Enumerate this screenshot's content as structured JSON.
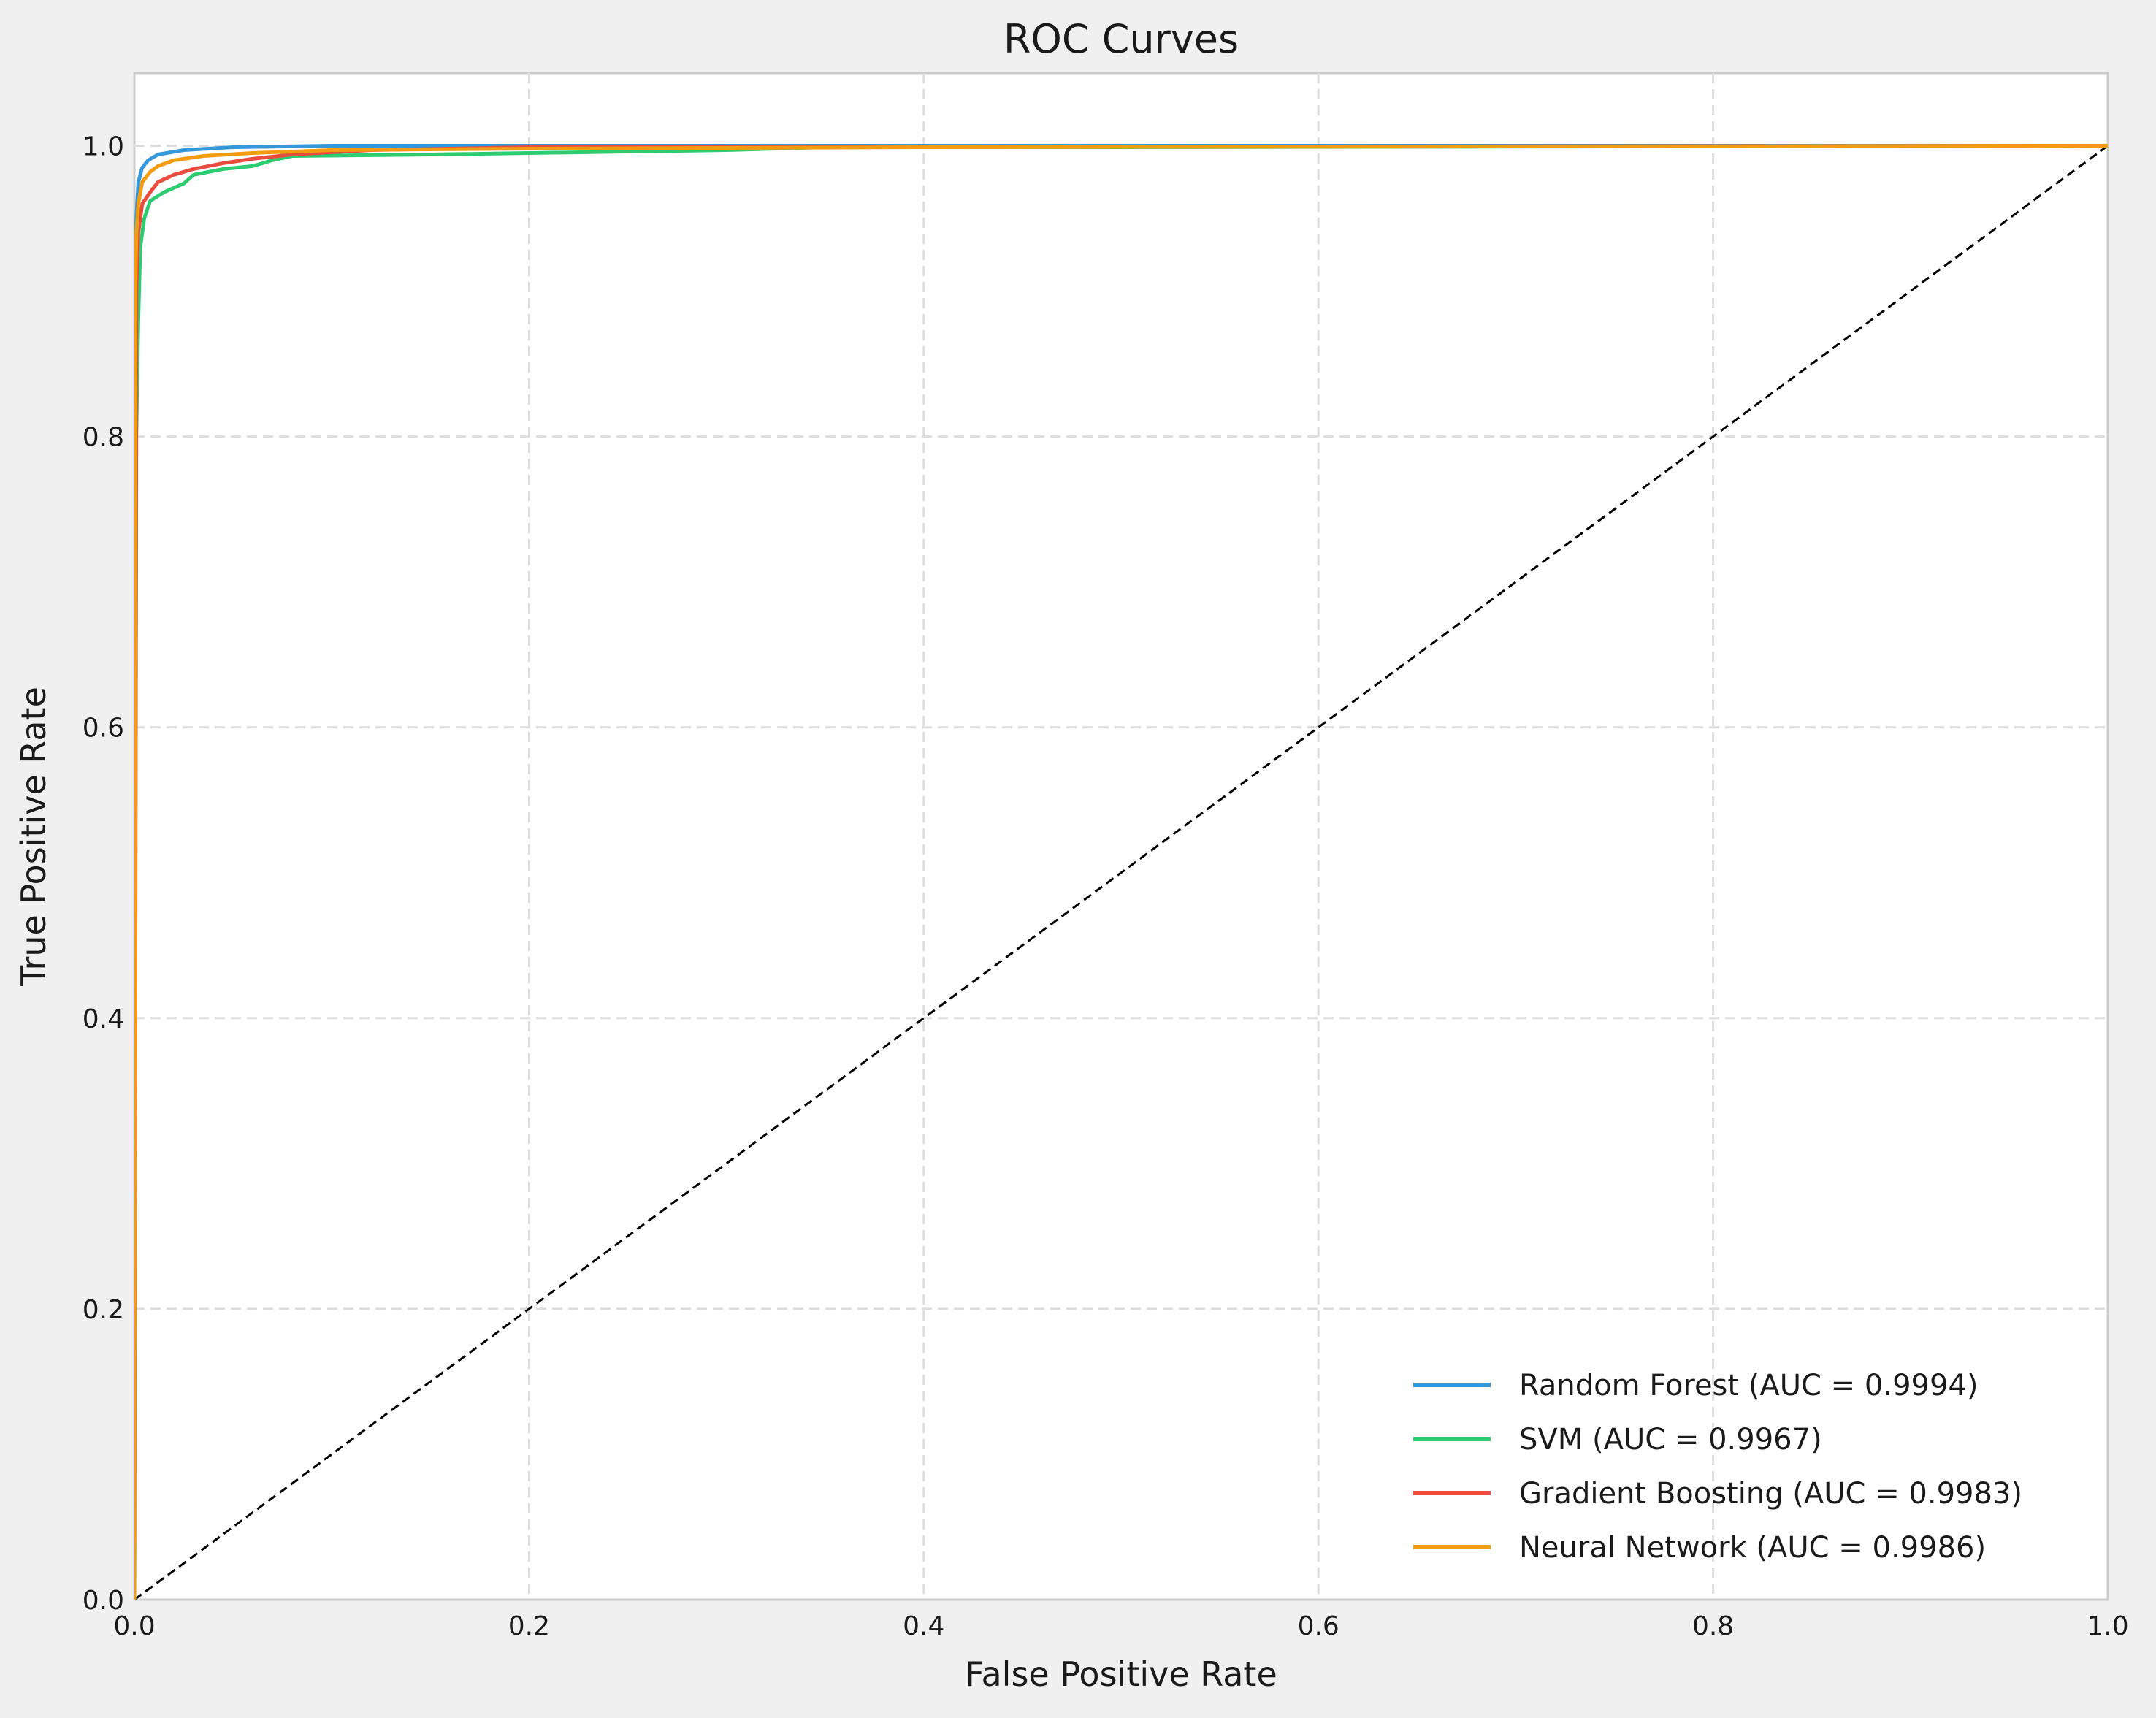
{
  "chart_data": {
    "type": "line",
    "title": "ROC Curves",
    "xlabel": "False Positive Rate",
    "ylabel": "True Positive Rate",
    "xlim": [
      0.0,
      1.0
    ],
    "ylim": [
      0.0,
      1.05
    ],
    "xticks": [
      "0.0",
      "0.2",
      "0.4",
      "0.6",
      "0.8",
      "1.0"
    ],
    "yticks": [
      "0.0",
      "0.2",
      "0.4",
      "0.6",
      "0.8",
      "1.0"
    ],
    "grid": true,
    "legend_position": "lower-right",
    "baseline": {
      "style": "dashed",
      "color": "#000000",
      "points": [
        [
          0,
          0
        ],
        [
          1,
          1
        ]
      ]
    },
    "series": [
      {
        "name": "Random Forest (AUC = 0.9994)",
        "color": "#3498db",
        "points": [
          [
            0,
            0
          ],
          [
            0.0005,
            0.88
          ],
          [
            0.001,
            0.95
          ],
          [
            0.002,
            0.975
          ],
          [
            0.004,
            0.985
          ],
          [
            0.007,
            0.99
          ],
          [
            0.012,
            0.994
          ],
          [
            0.025,
            0.997
          ],
          [
            0.05,
            0.999
          ],
          [
            0.1,
            1.0
          ],
          [
            1.0,
            1.0
          ]
        ]
      },
      {
        "name": "SVM (AUC = 0.9967)",
        "color": "#2ecc71",
        "points": [
          [
            0,
            0
          ],
          [
            0.001,
            0.8
          ],
          [
            0.002,
            0.88
          ],
          [
            0.003,
            0.93
          ],
          [
            0.005,
            0.95
          ],
          [
            0.008,
            0.962
          ],
          [
            0.015,
            0.968
          ],
          [
            0.025,
            0.974
          ],
          [
            0.03,
            0.98
          ],
          [
            0.045,
            0.984
          ],
          [
            0.06,
            0.986
          ],
          [
            0.07,
            0.99
          ],
          [
            0.08,
            0.993
          ],
          [
            0.15,
            0.994
          ],
          [
            0.2,
            0.995
          ],
          [
            0.3,
            0.997
          ],
          [
            0.35,
            0.999
          ],
          [
            0.5,
            0.999
          ],
          [
            1.0,
            1.0
          ]
        ]
      },
      {
        "name": "Gradient Boosting (AUC = 0.9983)",
        "color": "#e74c3c",
        "points": [
          [
            0,
            0
          ],
          [
            0.001,
            0.9
          ],
          [
            0.002,
            0.94
          ],
          [
            0.004,
            0.96
          ],
          [
            0.008,
            0.968
          ],
          [
            0.012,
            0.975
          ],
          [
            0.02,
            0.98
          ],
          [
            0.03,
            0.984
          ],
          [
            0.045,
            0.988
          ],
          [
            0.06,
            0.991
          ],
          [
            0.08,
            0.994
          ],
          [
            0.12,
            0.997
          ],
          [
            0.2,
            0.999
          ],
          [
            1.0,
            1.0
          ]
        ]
      },
      {
        "name": "Neural Network (AUC = 0.9986)",
        "color": "#f39c12",
        "points": [
          [
            0,
            0
          ],
          [
            0.0005,
            0.9
          ],
          [
            0.001,
            0.94
          ],
          [
            0.002,
            0.96
          ],
          [
            0.004,
            0.975
          ],
          [
            0.008,
            0.982
          ],
          [
            0.012,
            0.986
          ],
          [
            0.02,
            0.99
          ],
          [
            0.035,
            0.993
          ],
          [
            0.06,
            0.995
          ],
          [
            0.1,
            0.997
          ],
          [
            0.2,
            0.998
          ],
          [
            0.4,
            0.999
          ],
          [
            1.0,
            1.0
          ]
        ]
      }
    ]
  }
}
